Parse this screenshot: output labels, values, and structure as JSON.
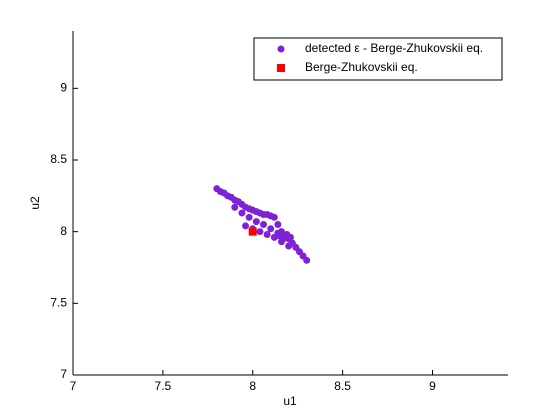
{
  "chart_data": {
    "type": "scatter",
    "xlabel": "u1",
    "ylabel": "u2",
    "xlim": [
      7,
      9.42
    ],
    "ylim": [
      7,
      9.4
    ],
    "xticks": [
      7,
      7.5,
      8,
      8.5,
      9
    ],
    "yticks": [
      7,
      7.5,
      8,
      8.5,
      9
    ],
    "grid": false,
    "legend": "upper right",
    "series": [
      {
        "name": "detected ε - Berge-Zhukovskii eq.",
        "color": "#7f22d6",
        "marker": "circle",
        "x": [
          7.8,
          7.82,
          7.84,
          7.86,
          7.88,
          7.9,
          7.92,
          7.94,
          7.96,
          7.98,
          8.0,
          8.02,
          8.04,
          8.06,
          8.08,
          8.1,
          8.12,
          8.14,
          8.16,
          8.18,
          8.2,
          8.22,
          8.24,
          8.26,
          8.28,
          8.3,
          7.9,
          7.94,
          7.98,
          8.02,
          8.06,
          8.1,
          8.14,
          8.18,
          7.96,
          8.0,
          8.04,
          8.08,
          8.12,
          8.16,
          8.2,
          8.19,
          8.21,
          8.15,
          8.17
        ],
        "values": [
          8.3,
          8.28,
          8.27,
          8.25,
          8.24,
          8.22,
          8.21,
          8.19,
          8.17,
          8.16,
          8.15,
          8.14,
          8.13,
          8.12,
          8.12,
          8.11,
          8.1,
          8.05,
          8.0,
          7.97,
          7.95,
          7.92,
          7.89,
          7.86,
          7.83,
          7.8,
          8.17,
          8.13,
          8.1,
          8.07,
          8.05,
          8.02,
          7.99,
          7.96,
          8.04,
          8.02,
          8.0,
          7.98,
          7.96,
          7.93,
          7.9,
          7.98,
          7.96,
          7.97,
          7.95
        ]
      },
      {
        "name": "Berge-Zhukovskii eq.",
        "color": "#ff0000",
        "marker": "square",
        "x": [
          8.0
        ],
        "values": [
          8.0
        ]
      }
    ]
  }
}
